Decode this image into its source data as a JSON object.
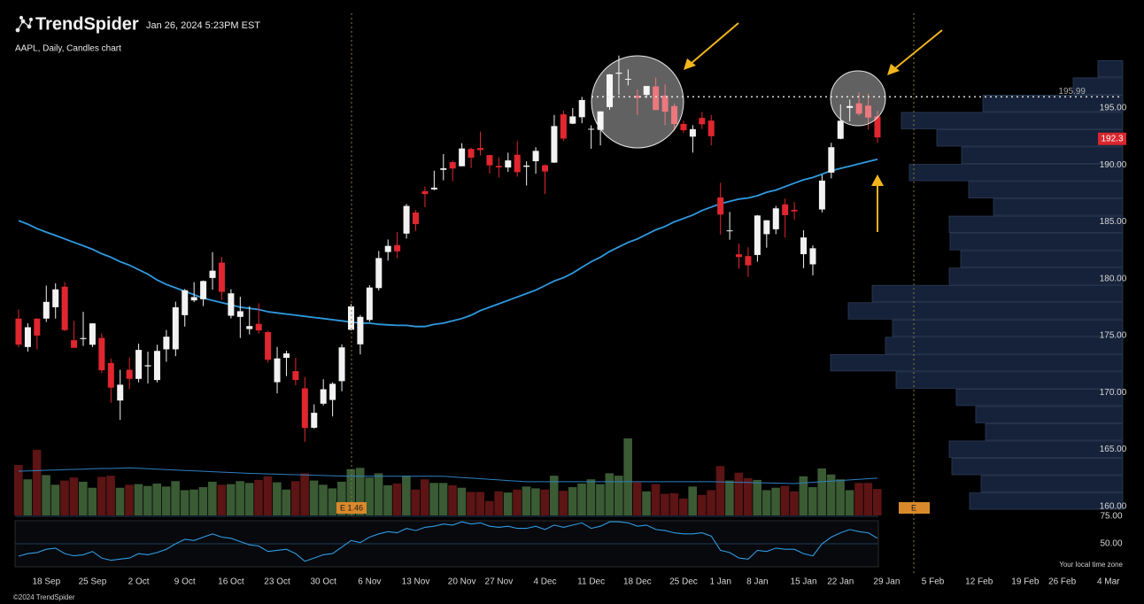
{
  "header": {
    "brand": "TrendSpider",
    "timestamp": "Jan 26, 2024 5:23PM EST"
  },
  "footer": {
    "copyright": "©2024 TrendSpider",
    "timezone_note": "Your local time zone"
  },
  "chart_data": {
    "type": "candlestick",
    "title": "AAPL, Daily, Candles chart",
    "categories": [
      null,
      null,
      null,
      "18 Sep",
      null,
      null,
      null,
      null,
      "25 Sep",
      null,
      null,
      null,
      null,
      "2 Oct",
      null,
      null,
      null,
      null,
      "9 Oct",
      null,
      null,
      null,
      null,
      "16 Oct",
      null,
      null,
      null,
      null,
      "23 Oct",
      null,
      null,
      null,
      null,
      "30 Oct",
      null,
      null,
      null,
      null,
      "6 Nov",
      null,
      null,
      null,
      null,
      "13 Nov",
      null,
      null,
      null,
      null,
      "20 Nov",
      null,
      null,
      null,
      "27 Nov",
      null,
      null,
      null,
      null,
      "4 Dec",
      null,
      null,
      null,
      null,
      "11 Dec",
      null,
      null,
      null,
      null,
      "18 Dec",
      null,
      null,
      null,
      null,
      "25 Dec",
      null,
      null,
      null,
      "1 Jan",
      null,
      null,
      null,
      "8 Jan",
      null,
      null,
      null,
      null,
      "15 Jan",
      null,
      null,
      null,
      "22 Jan",
      null,
      null,
      null,
      null
    ],
    "future_categories": [
      "29 Jan",
      null,
      null,
      null,
      null,
      "5 Feb",
      null,
      null,
      null,
      null,
      "12 Feb",
      null,
      null,
      null,
      null,
      "19 Feb",
      null,
      null,
      null,
      "26 Feb",
      null,
      null,
      null,
      null,
      "4 Mar"
    ],
    "open": [
      176.5,
      174.0,
      176.5,
      176.5,
      177.5,
      179.3,
      174.6,
      174.7,
      174.2,
      174.8,
      172.6,
      169.3,
      172.0,
      171.2,
      172.3,
      171.1,
      173.8,
      173.8,
      176.8,
      178.1,
      178.2,
      180.07,
      181.42,
      176.75,
      176.65,
      175.58,
      176.04,
      175.31,
      170.91,
      173.05,
      171.88,
      170.37,
      166.91,
      169.02,
      169.35,
      171.0,
      175.52,
      174.24,
      176.38,
      179.18,
      182.35,
      182.96,
      183.97,
      185.82,
      187.7,
      187.85,
      189.57,
      190.25,
      189.89,
      191.41,
      191.49,
      190.87,
      189.92,
      189.78,
      190.9,
      189.84,
      190.33,
      189.98,
      190.21,
      194.45,
      193.63,
      194.2,
      193.11,
      193.08,
      195.09,
      198.02,
      197.53,
      196.09,
      196.16,
      196.9,
      196.1,
      195.18,
      193.61,
      192.49,
      194.14,
      193.9,
      187.15,
      184.22,
      182.15,
      181.99,
      182.09,
      183.92,
      184.35,
      186.54,
      186.06,
      182.16,
      181.27,
      186.09,
      189.33,
      192.3,
      195.02,
      195.42,
      195.22,
      194.27
    ],
    "high": [
      177.3,
      176.1,
      176.5,
      179.4,
      179.6,
      179.7,
      176.3,
      177.1,
      176.1,
      175.2,
      173.0,
      172.0,
      173.1,
      174.3,
      173.6,
      174.2,
      175.5,
      177.99,
      179.1,
      179.7,
      179.85,
      182.34,
      181.93,
      179.08,
      178.42,
      177.58,
      177.84,
      175.42,
      174.01,
      173.67,
      173.06,
      171.38,
      168.96,
      171.17,
      170.9,
      174.23,
      177.78,
      176.82,
      179.43,
      182.44,
      183.45,
      184.12,
      186.57,
      186.03,
      188.11,
      189.5,
      190.96,
      190.38,
      191.91,
      191.52,
      192.93,
      190.9,
      190.67,
      191.08,
      192.09,
      190.32,
      191.56,
      190.05,
      194.4,
      194.76,
      195.0,
      195.99,
      193.49,
      194.72,
      198.0,
      199.62,
      198.4,
      196.63,
      196.95,
      197.68,
      197.08,
      195.41,
      193.89,
      193.5,
      194.66,
      194.4,
      188.44,
      185.88,
      183.09,
      182.76,
      185.6,
      185.15,
      186.4,
      187.05,
      186.74,
      184.26,
      182.93,
      189.14,
      191.95,
      195.33,
      195.75,
      196.38,
      196.27,
      194.76
    ],
    "low": [
      173.98,
      173.6,
      173.8,
      176.2,
      176.5,
      175.4,
      173.9,
      174.1,
      174.0,
      171.7,
      169.1,
      167.6,
      170.3,
      170.9,
      170.8,
      170.9,
      172.7,
      173.2,
      175.8,
      177.95,
      177.6,
      179.04,
      178.14,
      176.51,
      174.8,
      175.11,
      175.19,
      172.64,
      169.93,
      171.45,
      170.65,
      165.67,
      166.83,
      168.87,
      167.9,
      170.12,
      175.46,
      173.35,
      176.21,
      178.97,
      181.59,
      181.81,
      183.53,
      184.21,
      186.3,
      187.78,
      188.65,
      188.57,
      189.88,
      189.74,
      190.83,
      189.25,
      188.9,
      189.4,
      188.97,
      188.19,
      189.23,
      187.45,
      190.18,
      192.11,
      193.59,
      193.67,
      191.42,
      191.72,
      194.85,
      196.16,
      197.0,
      194.39,
      195.89,
      194.83,
      193.5,
      192.97,
      192.83,
      191.09,
      193.17,
      191.73,
      183.89,
      183.43,
      180.88,
      180.17,
      181.5,
      182.73,
      183.92,
      183.62,
      185.19,
      180.93,
      180.3,
      185.83,
      188.82,
      192.26,
      193.83,
      194.34,
      193.11,
      191.94
    ],
    "close": [
      174.21,
      175.74,
      175.01,
      177.97,
      179.07,
      175.49,
      173.93,
      174.79,
      176.08,
      171.96,
      170.43,
      170.69,
      171.21,
      173.75,
      172.4,
      173.66,
      174.91,
      177.49,
      178.99,
      178.39,
      179.8,
      180.71,
      178.85,
      178.72,
      177.15,
      175.84,
      175.46,
      172.88,
      173.0,
      173.44,
      171.1,
      166.89,
      168.22,
      170.29,
      170.77,
      173.97,
      177.57,
      176.65,
      179.23,
      181.82,
      182.89,
      182.41,
      186.4,
      184.8,
      187.44,
      188.01,
      189.71,
      189.69,
      191.45,
      190.64,
      191.31,
      189.97,
      189.79,
      190.4,
      189.37,
      189.95,
      191.24,
      189.43,
      193.42,
      192.32,
      194.27,
      195.71,
      193.18,
      194.71,
      197.96,
      198.11,
      197.57,
      195.89,
      196.94,
      194.83,
      194.68,
      193.6,
      193.05,
      193.15,
      193.58,
      192.53,
      185.64,
      184.25,
      181.91,
      181.18,
      185.56,
      185.14,
      186.19,
      185.59,
      185.92,
      183.63,
      182.68,
      188.63,
      191.56,
      193.89,
      195.18,
      194.5,
      194.17,
      192.42
    ],
    "up_color": "#f2f2f2",
    "down_color": "#e0262e",
    "ylim": [
      159.2,
      204.5
    ],
    "yticks": [
      {
        "value": 160,
        "label": "160.00"
      },
      {
        "value": 165,
        "label": "165.00"
      },
      {
        "value": 170,
        "label": "170.00"
      },
      {
        "value": 175,
        "label": "175.00"
      },
      {
        "value": 180,
        "label": "180.00"
      },
      {
        "value": 185,
        "label": "185.00"
      },
      {
        "value": 190,
        "label": "190.00"
      },
      {
        "value": 195,
        "label": "195.00"
      }
    ],
    "last_price": 192.3,
    "last_price_color": "#d9262e",
    "resistance_level": 195.99,
    "sma": {
      "color": "#2f9ae0",
      "values": [
        185.1,
        184.8,
        184.4,
        184.1,
        183.8,
        183.5,
        183.2,
        182.9,
        182.6,
        182.2,
        181.9,
        181.5,
        181.2,
        180.8,
        180.4,
        179.9,
        179.5,
        179.2,
        178.9,
        178.6,
        178.3,
        178.1,
        177.9,
        177.7,
        177.5,
        177.4,
        177.3,
        177.1,
        177.0,
        176.9,
        176.8,
        176.7,
        176.6,
        176.5,
        176.4,
        176.3,
        176.2,
        176.1,
        176.1,
        176.0,
        175.95,
        175.9,
        175.9,
        175.8,
        175.8,
        176.0,
        176.1,
        176.3,
        176.5,
        176.8,
        177.2,
        177.5,
        177.8,
        178.1,
        178.4,
        178.7,
        179.0,
        179.4,
        179.8,
        180.1,
        180.5,
        181.0,
        181.5,
        181.9,
        182.4,
        182.8,
        183.2,
        183.5,
        183.9,
        184.3,
        184.6,
        185.0,
        185.3,
        185.6,
        186.0,
        186.3,
        186.6,
        186.8,
        187.0,
        187.1,
        187.3,
        187.6,
        187.8,
        188.1,
        188.4,
        188.7,
        188.9,
        189.2,
        189.5,
        189.7,
        189.9,
        190.1,
        190.3,
        190.5
      ]
    },
    "volume": {
      "up_color": "#3a5b34",
      "down_color": "#5c1414",
      "ma_color": "#2f7fc0",
      "values": [
        84,
        60,
        109,
        67,
        51,
        58,
        63,
        56,
        46,
        64,
        66,
        46,
        51,
        52,
        49,
        53,
        48,
        57,
        42,
        43,
        47,
        56,
        51,
        52,
        57,
        54,
        59,
        65,
        55,
        43,
        57,
        70,
        58,
        51,
        45,
        56,
        77,
        79,
        63,
        70,
        50,
        53,
        66,
        43,
        60,
        54,
        54,
        50,
        46,
        39,
        39,
        24,
        40,
        38,
        43,
        48,
        45,
        43,
        66,
        41,
        47,
        53,
        60,
        52,
        70,
        66,
        128,
        55,
        40,
        52,
        36,
        37,
        28,
        48,
        34,
        42,
        82,
        58,
        71,
        62,
        59,
        42,
        46,
        49,
        40,
        65,
        47,
        78,
        68,
        60,
        42,
        54,
        54,
        44
      ],
      "ma_values": [
        73.5,
        74,
        74.5,
        75,
        75.5,
        76,
        76.5,
        77,
        77.5,
        78,
        78,
        78.5,
        79,
        78.3,
        77.6,
        76.9,
        76.2,
        75.5,
        74.8,
        74.1,
        73.4,
        72.7,
        72,
        71.3,
        70.6,
        69.9,
        69.4,
        69,
        68.6,
        68.1,
        67.7,
        67.2,
        66.8,
        66.3,
        65.9,
        65.4,
        65,
        65,
        65,
        65,
        65,
        65,
        65,
        65,
        65,
        65,
        65,
        64,
        63,
        62,
        61,
        60,
        59,
        58,
        57,
        56,
        56,
        56,
        56,
        56,
        56,
        56,
        56,
        56,
        56,
        56,
        56,
        56,
        56,
        56,
        56,
        56,
        56,
        56,
        56,
        56,
        55.7,
        55.3,
        55,
        54.7,
        54.3,
        54,
        53.7,
        53.3,
        53,
        54,
        55,
        56,
        57,
        58,
        59,
        60,
        61,
        62
      ]
    },
    "volume_profile": {
      "color": "#16223a",
      "edge_color": "#2b3b57",
      "bins": [
        159.7,
        161.22,
        162.74,
        164.26,
        165.78,
        167.3,
        168.82,
        170.34,
        171.86,
        173.38,
        174.9,
        176.42,
        177.94,
        179.46,
        180.98,
        182.5,
        184.02,
        185.54,
        187.06,
        188.58,
        190.1,
        191.62,
        193.14,
        194.66,
        196.18,
        197.7,
        199.22
      ],
      "values": [
        173,
        160,
        193,
        196,
        155,
        166,
        188,
        256,
        330,
        268,
        260,
        310,
        283,
        196,
        183,
        195,
        196,
        146,
        174,
        241,
        182,
        210,
        250,
        158,
        56,
        28
      ]
    },
    "rsi": {
      "color": "#2f9ae0",
      "ylim": [
        29,
        75
      ],
      "yticks": [
        {
          "value": 75,
          "label": "75.00"
        },
        {
          "value": 50,
          "label": "50.00"
        }
      ],
      "values": [
        38.7,
        41,
        42,
        45,
        46,
        41,
        39,
        40,
        43,
        37,
        35,
        36,
        37,
        41,
        40,
        42,
        45,
        50,
        54,
        53,
        56,
        59,
        56,
        55,
        52,
        49,
        48,
        43,
        44,
        45,
        41,
        34,
        37,
        40,
        41,
        47,
        53,
        51,
        56,
        59,
        61,
        60,
        64,
        62,
        65,
        66,
        68,
        67,
        70,
        68,
        69,
        66,
        65,
        66,
        64,
        64,
        66,
        63,
        67,
        65,
        67,
        69,
        64,
        66,
        70,
        70,
        69,
        66,
        67,
        63,
        62,
        60,
        59,
        59,
        60,
        57,
        44,
        42,
        37,
        36,
        44,
        43,
        46,
        45,
        45,
        41,
        39,
        50,
        56,
        60,
        63,
        61,
        60,
        55
      ]
    },
    "earnings": [
      {
        "label": "E 1.46"
      },
      {
        "label": "E"
      }
    ]
  }
}
